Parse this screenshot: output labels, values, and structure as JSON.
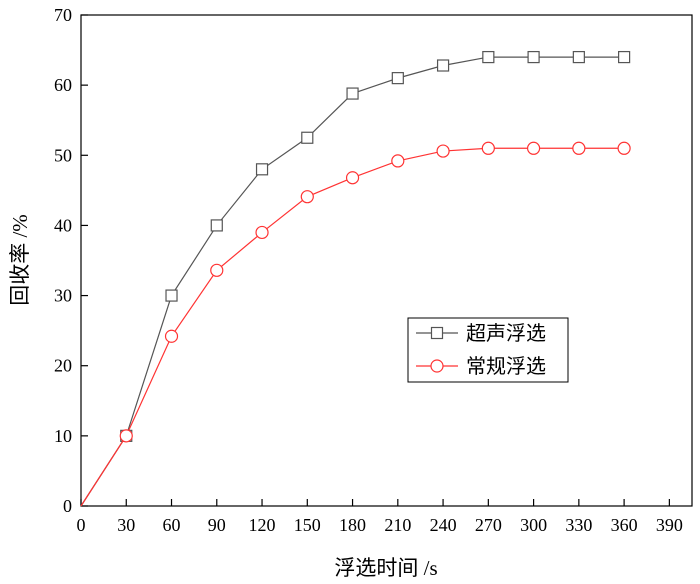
{
  "chart_data": {
    "type": "line",
    "xlabel": "浮选时间 /s",
    "ylabel": "回收率 /%",
    "xlim": [
      0,
      405
    ],
    "ylim": [
      0,
      70
    ],
    "x_ticks": [
      0,
      30,
      60,
      90,
      120,
      150,
      180,
      210,
      240,
      270,
      300,
      330,
      360,
      390
    ],
    "y_ticks": [
      0,
      10,
      20,
      30,
      40,
      50,
      60,
      70
    ],
    "grid": false,
    "legend_position": "center-right",
    "series": [
      {
        "name": "超声浮选",
        "color": "#555555",
        "marker": "square",
        "x": [
          0,
          30,
          60,
          90,
          120,
          150,
          180,
          210,
          240,
          270,
          300,
          330,
          360
        ],
        "y": [
          0,
          10,
          30,
          40,
          48,
          52.5,
          58.8,
          61,
          62.8,
          64,
          64,
          64,
          64
        ]
      },
      {
        "name": "常规浮选",
        "color": "#ff3333",
        "marker": "circle",
        "x": [
          0,
          30,
          60,
          90,
          120,
          150,
          180,
          210,
          240,
          270,
          300,
          330,
          360
        ],
        "y": [
          0,
          10,
          24.2,
          33.6,
          39,
          44.1,
          46.8,
          49.2,
          50.6,
          51,
          51,
          51,
          51
        ]
      }
    ]
  }
}
